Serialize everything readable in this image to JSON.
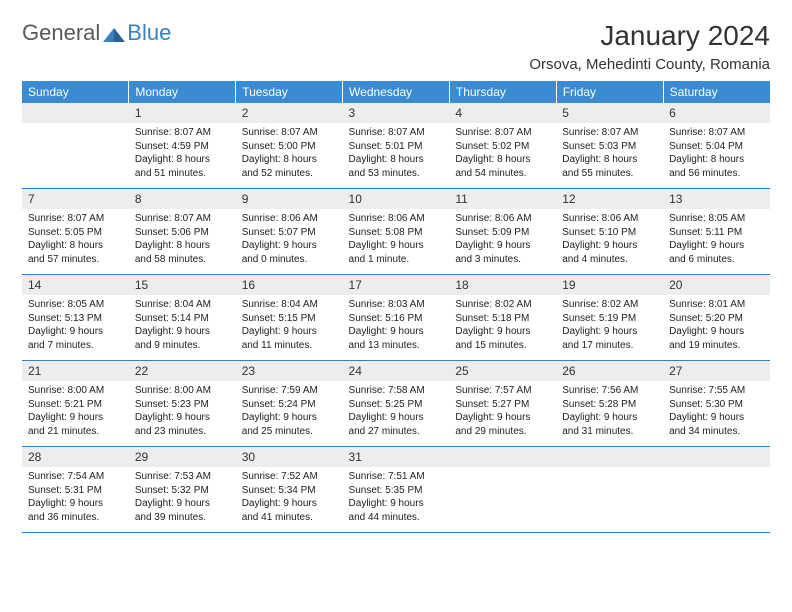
{
  "logo": {
    "main": "General",
    "accent": "Blue"
  },
  "title": "January 2024",
  "location": "Orsova, Mehedinti County, Romania",
  "colors": {
    "header_bg": "#3a8bd0",
    "header_fg": "#ffffff",
    "daynum_bg": "#eceded",
    "border": "#3a7fc2",
    "logo_main": "#56595c",
    "logo_accent": "#3a7fc2"
  },
  "dayHeaders": [
    "Sunday",
    "Monday",
    "Tuesday",
    "Wednesday",
    "Thursday",
    "Friday",
    "Saturday"
  ],
  "weeks": [
    [
      {
        "num": "",
        "lines": []
      },
      {
        "num": "1",
        "lines": [
          "Sunrise: 8:07 AM",
          "Sunset: 4:59 PM",
          "Daylight: 8 hours",
          "and 51 minutes."
        ]
      },
      {
        "num": "2",
        "lines": [
          "Sunrise: 8:07 AM",
          "Sunset: 5:00 PM",
          "Daylight: 8 hours",
          "and 52 minutes."
        ]
      },
      {
        "num": "3",
        "lines": [
          "Sunrise: 8:07 AM",
          "Sunset: 5:01 PM",
          "Daylight: 8 hours",
          "and 53 minutes."
        ]
      },
      {
        "num": "4",
        "lines": [
          "Sunrise: 8:07 AM",
          "Sunset: 5:02 PM",
          "Daylight: 8 hours",
          "and 54 minutes."
        ]
      },
      {
        "num": "5",
        "lines": [
          "Sunrise: 8:07 AM",
          "Sunset: 5:03 PM",
          "Daylight: 8 hours",
          "and 55 minutes."
        ]
      },
      {
        "num": "6",
        "lines": [
          "Sunrise: 8:07 AM",
          "Sunset: 5:04 PM",
          "Daylight: 8 hours",
          "and 56 minutes."
        ]
      }
    ],
    [
      {
        "num": "7",
        "lines": [
          "Sunrise: 8:07 AM",
          "Sunset: 5:05 PM",
          "Daylight: 8 hours",
          "and 57 minutes."
        ]
      },
      {
        "num": "8",
        "lines": [
          "Sunrise: 8:07 AM",
          "Sunset: 5:06 PM",
          "Daylight: 8 hours",
          "and 58 minutes."
        ]
      },
      {
        "num": "9",
        "lines": [
          "Sunrise: 8:06 AM",
          "Sunset: 5:07 PM",
          "Daylight: 9 hours",
          "and 0 minutes."
        ]
      },
      {
        "num": "10",
        "lines": [
          "Sunrise: 8:06 AM",
          "Sunset: 5:08 PM",
          "Daylight: 9 hours",
          "and 1 minute."
        ]
      },
      {
        "num": "11",
        "lines": [
          "Sunrise: 8:06 AM",
          "Sunset: 5:09 PM",
          "Daylight: 9 hours",
          "and 3 minutes."
        ]
      },
      {
        "num": "12",
        "lines": [
          "Sunrise: 8:06 AM",
          "Sunset: 5:10 PM",
          "Daylight: 9 hours",
          "and 4 minutes."
        ]
      },
      {
        "num": "13",
        "lines": [
          "Sunrise: 8:05 AM",
          "Sunset: 5:11 PM",
          "Daylight: 9 hours",
          "and 6 minutes."
        ]
      }
    ],
    [
      {
        "num": "14",
        "lines": [
          "Sunrise: 8:05 AM",
          "Sunset: 5:13 PM",
          "Daylight: 9 hours",
          "and 7 minutes."
        ]
      },
      {
        "num": "15",
        "lines": [
          "Sunrise: 8:04 AM",
          "Sunset: 5:14 PM",
          "Daylight: 9 hours",
          "and 9 minutes."
        ]
      },
      {
        "num": "16",
        "lines": [
          "Sunrise: 8:04 AM",
          "Sunset: 5:15 PM",
          "Daylight: 9 hours",
          "and 11 minutes."
        ]
      },
      {
        "num": "17",
        "lines": [
          "Sunrise: 8:03 AM",
          "Sunset: 5:16 PM",
          "Daylight: 9 hours",
          "and 13 minutes."
        ]
      },
      {
        "num": "18",
        "lines": [
          "Sunrise: 8:02 AM",
          "Sunset: 5:18 PM",
          "Daylight: 9 hours",
          "and 15 minutes."
        ]
      },
      {
        "num": "19",
        "lines": [
          "Sunrise: 8:02 AM",
          "Sunset: 5:19 PM",
          "Daylight: 9 hours",
          "and 17 minutes."
        ]
      },
      {
        "num": "20",
        "lines": [
          "Sunrise: 8:01 AM",
          "Sunset: 5:20 PM",
          "Daylight: 9 hours",
          "and 19 minutes."
        ]
      }
    ],
    [
      {
        "num": "21",
        "lines": [
          "Sunrise: 8:00 AM",
          "Sunset: 5:21 PM",
          "Daylight: 9 hours",
          "and 21 minutes."
        ]
      },
      {
        "num": "22",
        "lines": [
          "Sunrise: 8:00 AM",
          "Sunset: 5:23 PM",
          "Daylight: 9 hours",
          "and 23 minutes."
        ]
      },
      {
        "num": "23",
        "lines": [
          "Sunrise: 7:59 AM",
          "Sunset: 5:24 PM",
          "Daylight: 9 hours",
          "and 25 minutes."
        ]
      },
      {
        "num": "24",
        "lines": [
          "Sunrise: 7:58 AM",
          "Sunset: 5:25 PM",
          "Daylight: 9 hours",
          "and 27 minutes."
        ]
      },
      {
        "num": "25",
        "lines": [
          "Sunrise: 7:57 AM",
          "Sunset: 5:27 PM",
          "Daylight: 9 hours",
          "and 29 minutes."
        ]
      },
      {
        "num": "26",
        "lines": [
          "Sunrise: 7:56 AM",
          "Sunset: 5:28 PM",
          "Daylight: 9 hours",
          "and 31 minutes."
        ]
      },
      {
        "num": "27",
        "lines": [
          "Sunrise: 7:55 AM",
          "Sunset: 5:30 PM",
          "Daylight: 9 hours",
          "and 34 minutes."
        ]
      }
    ],
    [
      {
        "num": "28",
        "lines": [
          "Sunrise: 7:54 AM",
          "Sunset: 5:31 PM",
          "Daylight: 9 hours",
          "and 36 minutes."
        ]
      },
      {
        "num": "29",
        "lines": [
          "Sunrise: 7:53 AM",
          "Sunset: 5:32 PM",
          "Daylight: 9 hours",
          "and 39 minutes."
        ]
      },
      {
        "num": "30",
        "lines": [
          "Sunrise: 7:52 AM",
          "Sunset: 5:34 PM",
          "Daylight: 9 hours",
          "and 41 minutes."
        ]
      },
      {
        "num": "31",
        "lines": [
          "Sunrise: 7:51 AM",
          "Sunset: 5:35 PM",
          "Daylight: 9 hours",
          "and 44 minutes."
        ]
      },
      {
        "num": "",
        "lines": []
      },
      {
        "num": "",
        "lines": []
      },
      {
        "num": "",
        "lines": []
      }
    ]
  ]
}
